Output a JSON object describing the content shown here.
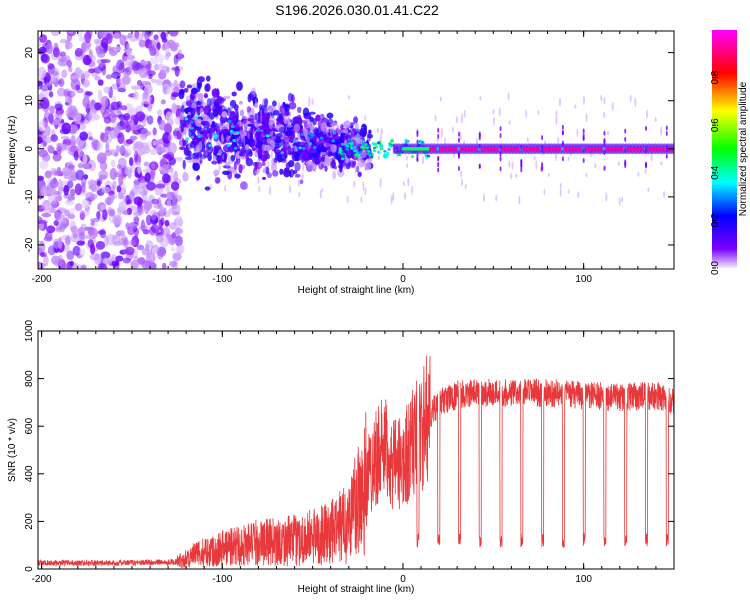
{
  "title": "S196.2026.030.01.41.C22",
  "chart_data": [
    {
      "type": "heatmap",
      "title": "",
      "xlabel": "Height of straight line (km)",
      "ylabel": "Frequency (Hz)",
      "xlim": [
        -202,
        150
      ],
      "ylim": [
        -25,
        24.5
      ],
      "xticks": [
        -200,
        -100,
        0,
        100
      ],
      "yticks": [
        -20,
        -10,
        0,
        10,
        20
      ],
      "colorbar": {
        "label": "Normalized spectral amplitude",
        "range": [
          0,
          1
        ],
        "ticks": [
          "0.0",
          "0.2",
          "0.4",
          "0.6",
          "0.8"
        ],
        "tick_values": [
          0,
          0.2,
          0.4,
          0.6,
          0.8
        ],
        "colormap": [
          "#f2e9ff",
          "#7b00ff",
          "#0000ff",
          "#00ffff",
          "#00ff00",
          "#ffff00",
          "#ff0000",
          "#ff00ff"
        ]
      },
      "description_regions": [
        {
          "x_range": [
            -202,
            -123
          ],
          "freq_range": [
            -25,
            24.5
          ],
          "amplitude": "0.0-0.2 noise"
        },
        {
          "x_range": [
            -123,
            -20
          ],
          "freq_center": "decreasing from about 5 to 0",
          "amplitude": "0.1-0.4"
        },
        {
          "x_range": [
            -20,
            15
          ],
          "freq_center": 0,
          "amplitude": "0.3-0.6"
        },
        {
          "x_range": [
            15,
            150
          ],
          "freq_center": 0,
          "amplitude": "0.8-1.0 with periodic dips every ~11 km"
        }
      ]
    },
    {
      "type": "line",
      "title": "",
      "xlabel": "Height of straight line (km)",
      "ylabel": "SNR (10 * v/v)",
      "xlim": [
        -202,
        150
      ],
      "ylim": [
        0,
        1000
      ],
      "xticks": [
        -200,
        -100,
        0,
        100
      ],
      "yticks": [
        0,
        200,
        400,
        600,
        800,
        1000
      ],
      "color": "#e8383b",
      "series": [
        {
          "name": "SNR",
          "x": [
            -200,
            -180,
            -160,
            -140,
            -125,
            -115,
            -100,
            -80,
            -60,
            -40,
            -30,
            -25,
            -20,
            -15,
            -10,
            -5,
            0,
            5,
            10,
            15,
            20,
            30,
            40,
            60,
            80,
            100,
            120,
            140,
            150
          ],
          "values": [
            25,
            25,
            25,
            28,
            30,
            60,
            90,
            110,
            120,
            150,
            200,
            300,
            380,
            480,
            500,
            430,
            450,
            530,
            580,
            650,
            700,
            730,
            740,
            740,
            740,
            730,
            720,
            730,
            700
          ],
          "dips": {
            "start": 8,
            "period": 11.5,
            "depth_value": 120,
            "count": 13
          }
        }
      ]
    }
  ]
}
